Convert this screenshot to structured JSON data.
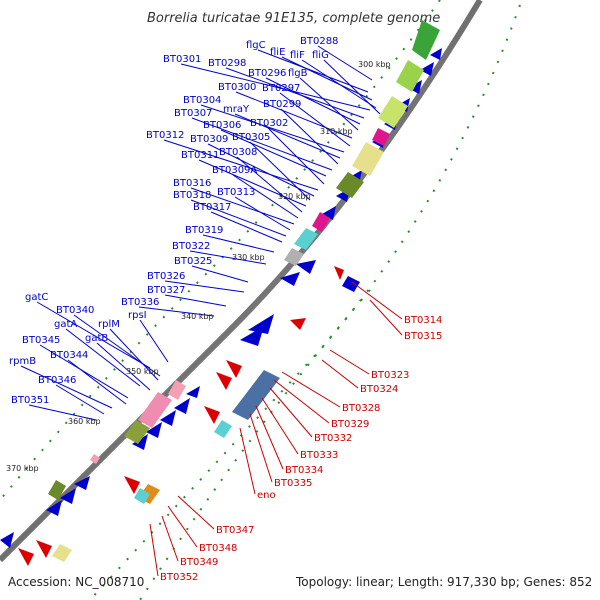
{
  "title": "Borrelia turicatae 91E135, complete genome",
  "accession": "Accession: NC_008710",
  "summary": "Topology: linear; Length: 917,330 bp; Genes: 852",
  "scale_ticks": [
    "300 kbp",
    "310 kbp",
    "320 kbp",
    "330 kbp",
    "340 kbp",
    "350 kbp",
    "360 kbp",
    "370 kbp"
  ],
  "forward_labels": [
    "BT0288",
    "flgC",
    "fliE",
    "fliF",
    "fliG",
    "BT0301",
    "BT0298",
    "BT0296",
    "flgB",
    "BT0300",
    "BT0297",
    "BT0304",
    "mraY",
    "BT0299",
    "BT0307",
    "BT0306",
    "BT0302",
    "BT0312",
    "BT0309",
    "BT0305",
    "BT0311",
    "BT0308",
    "BT0309A",
    "BT0316",
    "BT0313",
    "BT0318",
    "BT0317",
    "BT0319",
    "BT0322",
    "BT0325",
    "BT0326",
    "BT0327",
    "BT0336",
    "gatC",
    "BT0340",
    "rpsI",
    "gatA",
    "rplM",
    "BT0345",
    "gatB",
    "rpmB",
    "BT0344",
    "BT0346",
    "BT0351"
  ],
  "reverse_labels": [
    "BT0314",
    "BT0315",
    "BT0323",
    "BT0324",
    "BT0328",
    "BT0329",
    "BT0332",
    "BT0333",
    "BT0334",
    "BT0335",
    "eno",
    "BT0347",
    "BT0348",
    "BT0349",
    "BT0352"
  ],
  "colors": {
    "forward": "#0000cc",
    "reverse": "#cc0000",
    "backbone": "#999999"
  }
}
